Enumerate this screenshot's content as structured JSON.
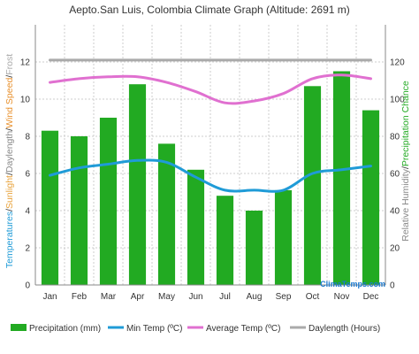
{
  "colors": {
    "precipitation": "#22aa22",
    "min_temp": "#1f9bd7",
    "avg_temp": "#e070d0",
    "daylength": "#aaaaaa",
    "grid": "#cccccc",
    "brand": "#1a7ad0",
    "left_axis_label_temperature": "#1f9bd7",
    "left_axis_label_sunlight": "#e8a33c",
    "left_axis_label_daylength": "#888888",
    "left_axis_label_windspeed": "#e8902c",
    "left_axis_label_frost": "#aaaaaa",
    "right_axis_label_humidity": "#888888",
    "right_axis_label_precip": "#22aa22"
  },
  "left_axis_label": {
    "part1": "Temperatures",
    "sep1": "/",
    "part2": "Sunlight",
    "sep2": "/",
    "part3": "Daylength",
    "sep3": "/",
    "part4": "Wind Speed",
    "sep4": "/",
    "part5": "Frost"
  },
  "right_axis_label": {
    "part1": "Relative Humidity",
    "sep1": "/",
    "part2": "Precipitation Chance"
  },
  "brand": "ClimaTemps.com",
  "chart_data": {
    "type": "bar",
    "title": "Aepto.San Luis, Colombia Climate Graph (Altitude: 2691 m)",
    "categories": [
      "Jan",
      "Feb",
      "Mar",
      "Apr",
      "May",
      "Jun",
      "Jul",
      "Aug",
      "Sep",
      "Oct",
      "Nov",
      "Dec"
    ],
    "left_ylim": [
      0,
      14
    ],
    "left_ticks": [
      "0",
      "2",
      "4",
      "6",
      "8",
      "10",
      "12"
    ],
    "right_ylim": [
      0,
      140
    ],
    "right_ticks": [
      "0",
      "20",
      "40",
      "60",
      "80",
      "100",
      "120"
    ],
    "grid": true,
    "legend_position": "bottom",
    "series": [
      {
        "name": "Precipitation (mm)",
        "kind": "bar",
        "axis": "left",
        "values": [
          8.3,
          8.0,
          9.0,
          10.8,
          7.6,
          6.2,
          4.8,
          4.0,
          5.1,
          10.7,
          11.5,
          9.4
        ]
      },
      {
        "name": "Min Temp (ºC)",
        "kind": "line",
        "axis": "left",
        "values": [
          5.9,
          6.3,
          6.5,
          6.7,
          6.6,
          5.8,
          5.1,
          5.1,
          5.1,
          6.0,
          6.2,
          6.4
        ]
      },
      {
        "name": "Average Temp (ºC)",
        "kind": "line",
        "axis": "left",
        "values": [
          10.9,
          11.1,
          11.2,
          11.2,
          10.9,
          10.4,
          9.8,
          9.9,
          10.3,
          11.1,
          11.3,
          11.1
        ]
      },
      {
        "name": "Daylength (Hours)",
        "kind": "line",
        "axis": "left",
        "values": [
          12.1,
          12.1,
          12.1,
          12.1,
          12.1,
          12.1,
          12.1,
          12.1,
          12.1,
          12.1,
          12.1,
          12.1
        ]
      }
    ]
  }
}
